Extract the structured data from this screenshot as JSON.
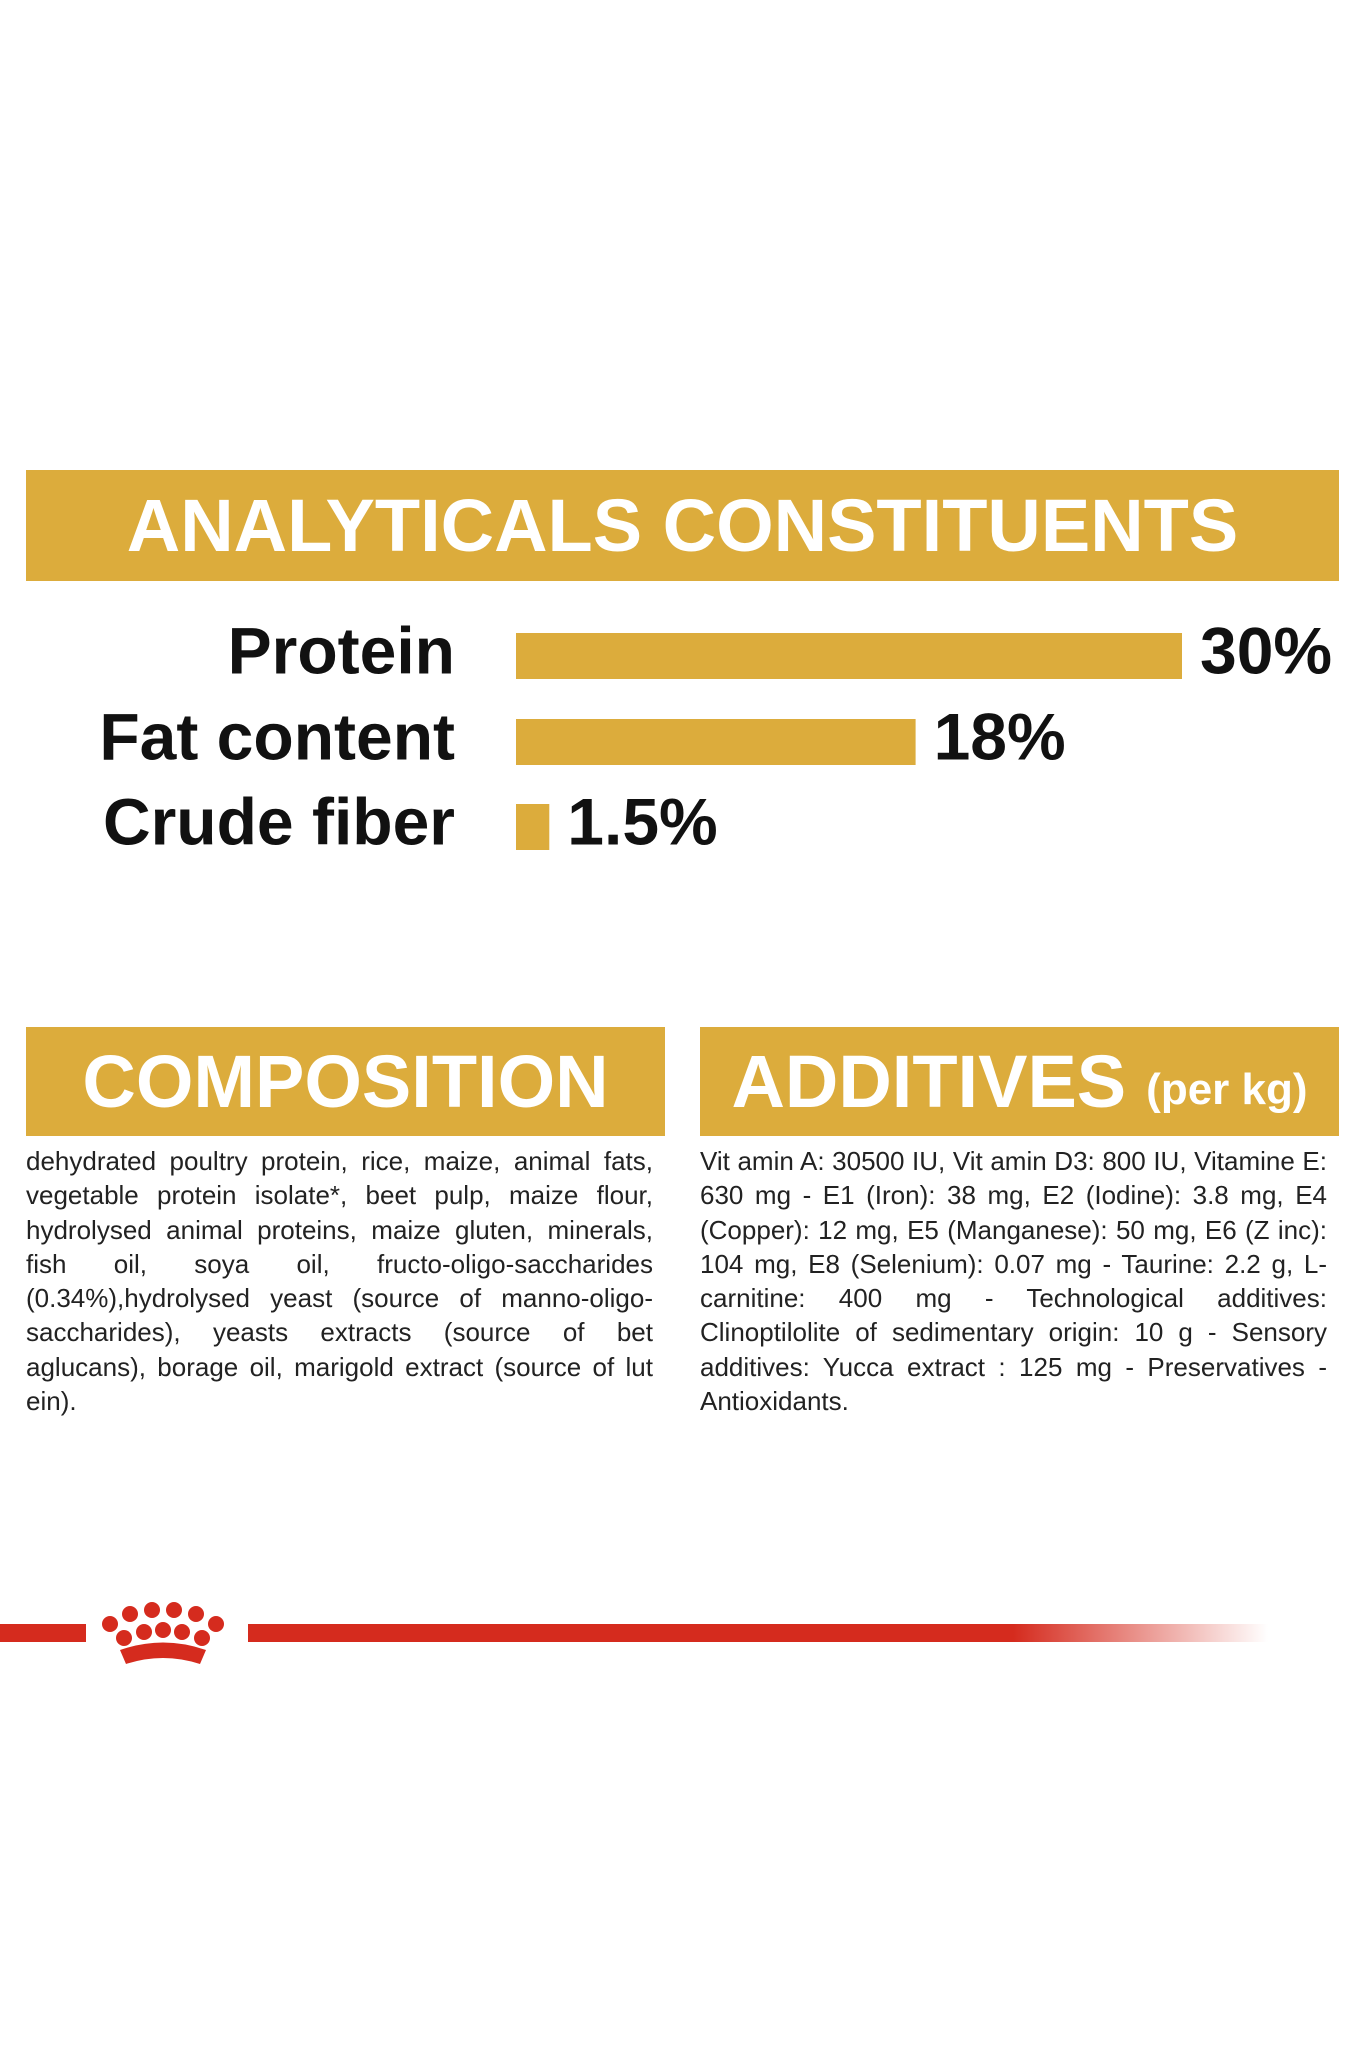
{
  "chart_data": {
    "type": "bar",
    "title": "ANALYTICALS CONSTITUENTS",
    "categories": [
      "Protein",
      "Fat content",
      "Crude fiber"
    ],
    "values": [
      30,
      18,
      1.5
    ],
    "value_labels": [
      "30%",
      "18%",
      "1.5%"
    ],
    "color": "#dcac3c"
  },
  "composition": {
    "title": "COMPOSITION",
    "text": "dehydrated poultry protein, rice, maize, animal fats, vegetable protein isolate*, beet pulp, maize flour, hydrolysed animal proteins, maize gluten, minerals, fish oil, soya oil, fructo-oligo-saccharides (0.34%),hydrolysed yeast (source of manno-oligo-saccharides), yeasts extracts (source of bet aglucans), borage oil, marigold extract (source of lut ein)."
  },
  "additives": {
    "title": "ADDITIVES",
    "subtitle": "(per kg)",
    "text": "Vit amin A: 30500 IU, Vit amin D3: 800 IU, Vitamine E: 630 mg - E1 (Iron): 38 mg, E2 (Iodine): 3.8 mg, E4 (Copper): 12 mg, E5 (Manganese): 50 mg, E6 (Z inc): 104 mg, E8 (Selenium): 0.07 mg - Taurine: 2.2 g, L-carnitine: 400 mg - Technological additives: Clinoptilolite of sedimentary origin: 10 g - Sensory additives: Yucca extract : 125 mg - Preservatives -Antioxidants."
  }
}
